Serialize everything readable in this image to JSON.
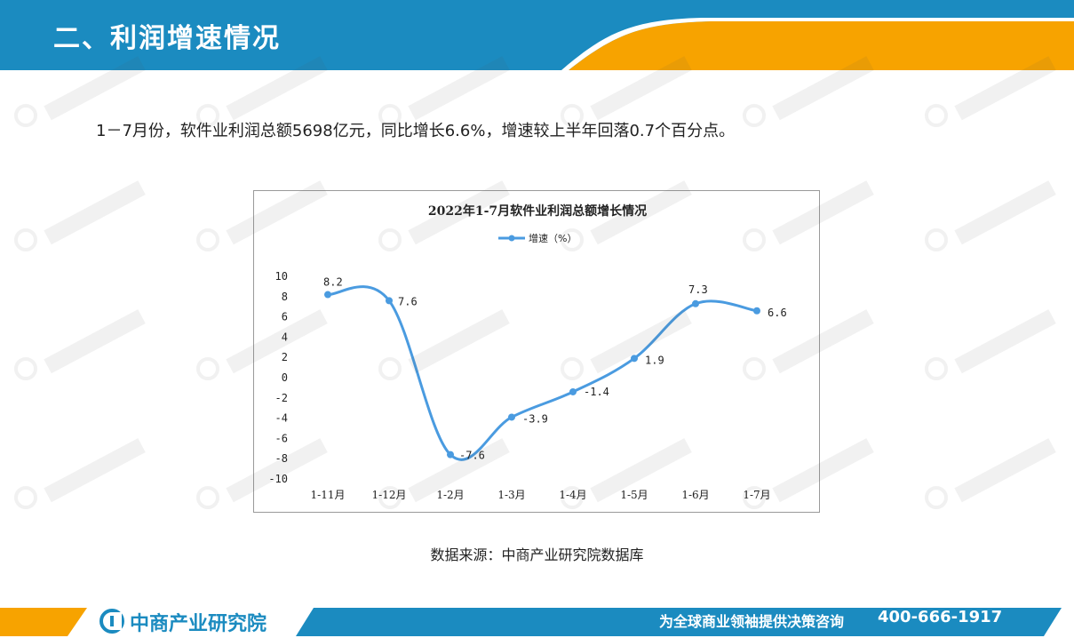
{
  "header": {
    "title": "二、利润增速情况",
    "colors": {
      "blue": "#1b8bc0",
      "orange": "#f7a300"
    }
  },
  "summary": {
    "text": "1－7月份，软件业利润总额5698亿元，同比增长6.6%，增速较上半年回落0.7个百分点。"
  },
  "chart_data": {
    "type": "line",
    "title": "2022年1-7月软件业利润总额增长情况",
    "categories": [
      "1-11月",
      "1-12月",
      "1-2月",
      "1-3月",
      "1-4月",
      "1-5月",
      "1-6月",
      "1-7月"
    ],
    "series": [
      {
        "name": "增速（%）",
        "values": [
          8.2,
          7.6,
          -7.6,
          -3.9,
          -1.4,
          1.9,
          7.3,
          6.6
        ],
        "color": "#4a9be0"
      }
    ],
    "data_labels": [
      "8.2",
      "7.6",
      "-7.6",
      "-3.9",
      "-1.4",
      "1.9",
      "7.3",
      "6.6"
    ],
    "yticks": [
      "10",
      "8",
      "6",
      "4",
      "2",
      "0",
      "-2",
      "-4",
      "-6",
      "-8",
      "-10"
    ],
    "ylim": [
      -10,
      10
    ],
    "ystep": 2,
    "grid": false,
    "legend_position": "top",
    "smooth": true
  },
  "source": {
    "text": "数据来源：中商产业研究院数据库"
  },
  "footer": {
    "brand": "中商产业研究院",
    "slogan": "为全球商业领袖提供决策咨询",
    "phone": "400-666-1917"
  }
}
